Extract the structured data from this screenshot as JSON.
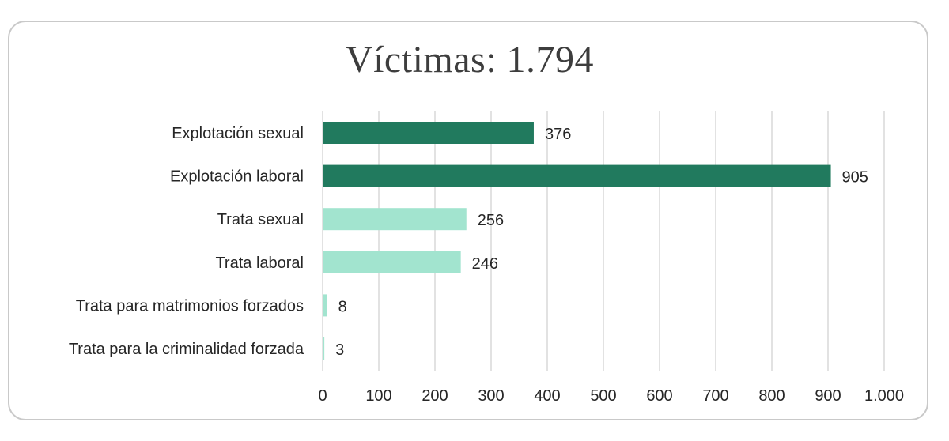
{
  "chart_data": {
    "type": "bar",
    "orientation": "horizontal",
    "title": "Víctimas: 1.794",
    "categories": [
      "Explotación sexual",
      "Explotación laboral",
      "Trata sexual",
      "Trata laboral",
      "Trata para matrimonios forzados",
      "Trata para la criminalidad forzada"
    ],
    "values": [
      376,
      905,
      256,
      246,
      8,
      3
    ],
    "value_labels": [
      "376",
      "905",
      "256",
      "246",
      "8",
      "3"
    ],
    "bar_colors": [
      "#217a5e",
      "#217a5e",
      "#a2e4cf",
      "#a2e4cf",
      "#a2e4cf",
      "#a2e4cf"
    ],
    "xlim": [
      0,
      1000
    ],
    "x_ticks": [
      0,
      100,
      200,
      300,
      400,
      500,
      600,
      700,
      800,
      900,
      1000
    ],
    "x_tick_labels": [
      "0",
      "100",
      "200",
      "300",
      "400",
      "500",
      "600",
      "700",
      "800",
      "900",
      "1.000"
    ],
    "grid": "vertical",
    "grid_color": "#d9d9d9",
    "legend": "none"
  }
}
